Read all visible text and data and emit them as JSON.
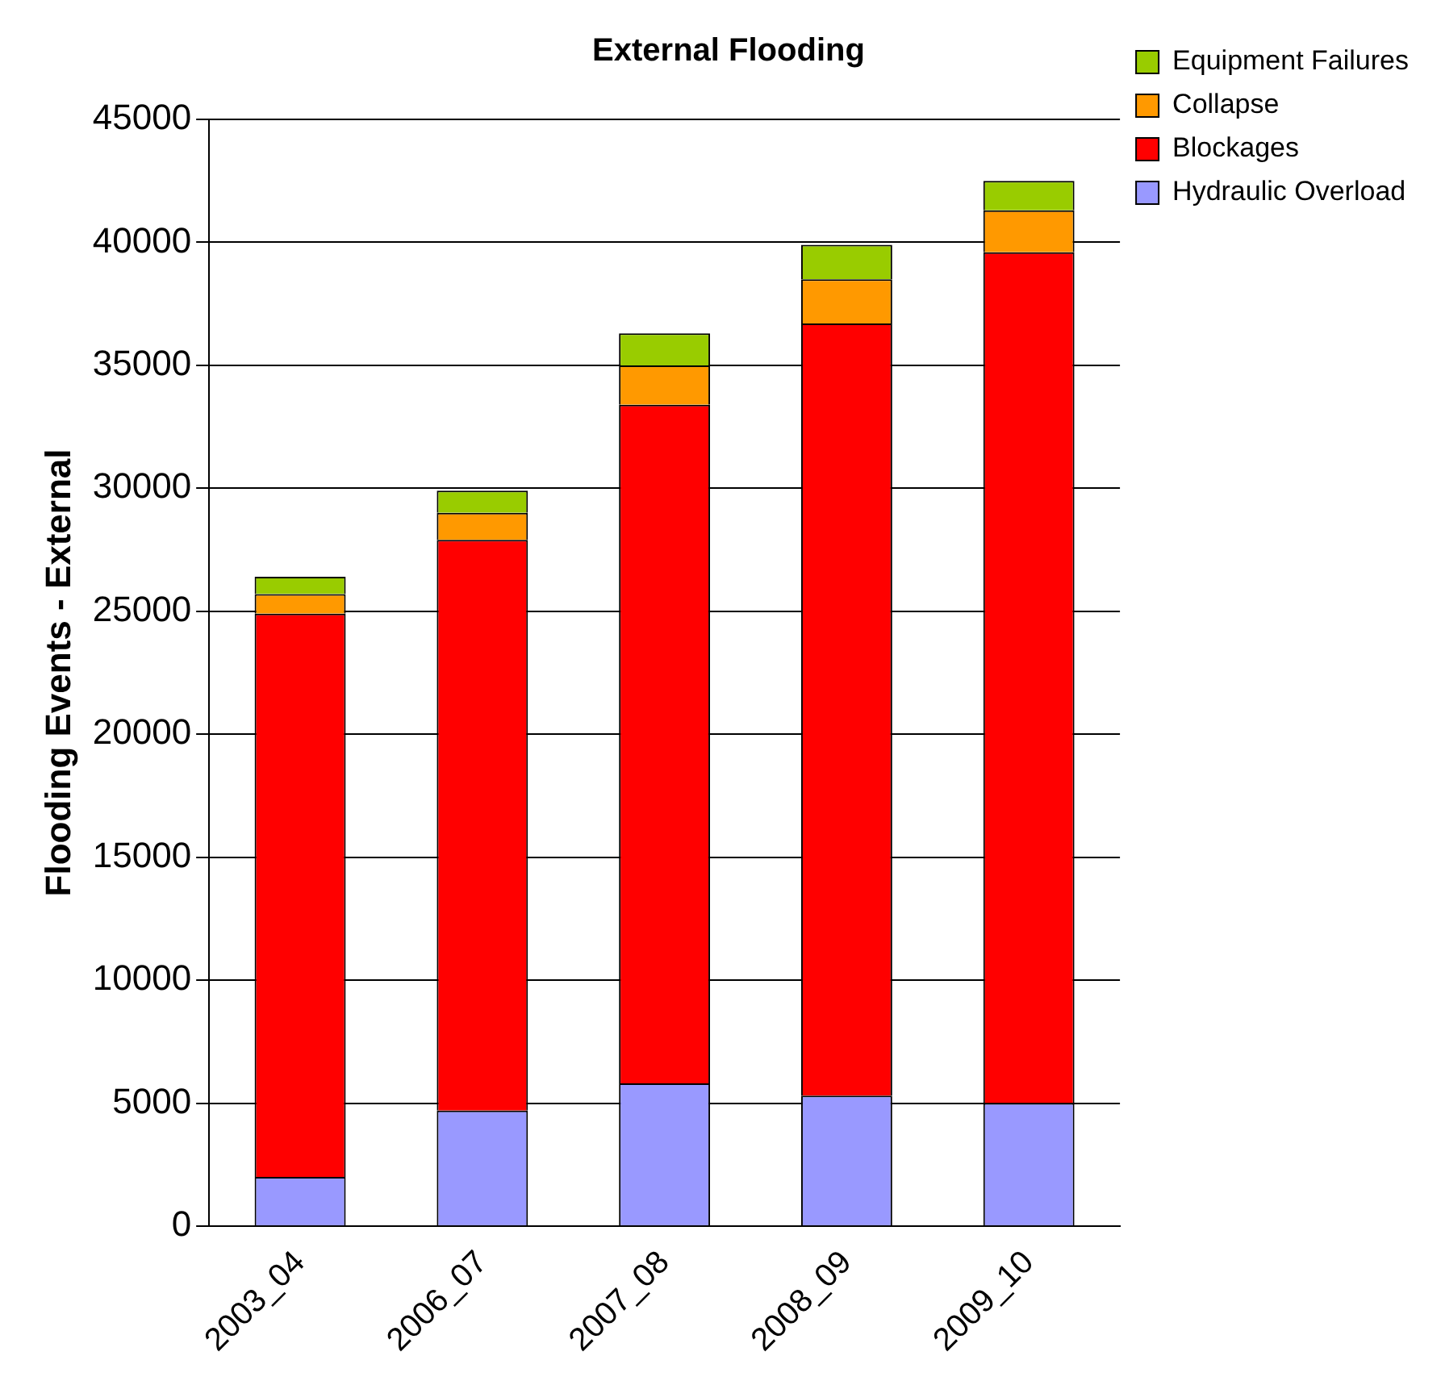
{
  "chart_data": {
    "type": "bar",
    "title": "External Flooding",
    "ylabel": "Flooding Events - External",
    "categories": [
      "2003_04",
      "2006_07",
      "2007_08",
      "2008_09",
      "2009_10"
    ],
    "stacked": true,
    "series": [
      {
        "name": "Hydraulic Overload",
        "color": "#9999ff",
        "values": [
          2000,
          4700,
          5800,
          5300,
          5000
        ]
      },
      {
        "name": "Blockages",
        "color": "#ff0000",
        "values": [
          22900,
          23200,
          27600,
          31400,
          34600
        ]
      },
      {
        "name": "Collapse",
        "color": "#ff9900",
        "values": [
          800,
          1100,
          1600,
          1800,
          1700
        ]
      },
      {
        "name": "Equipment Failures",
        "color": "#99cc00",
        "values": [
          700,
          900,
          1300,
          1400,
          1200
        ]
      }
    ],
    "ylim": [
      0,
      45000
    ],
    "yticks": [
      0,
      5000,
      10000,
      15000,
      20000,
      25000,
      30000,
      35000,
      40000,
      45000
    ],
    "grid": "y",
    "legend": "top right"
  }
}
